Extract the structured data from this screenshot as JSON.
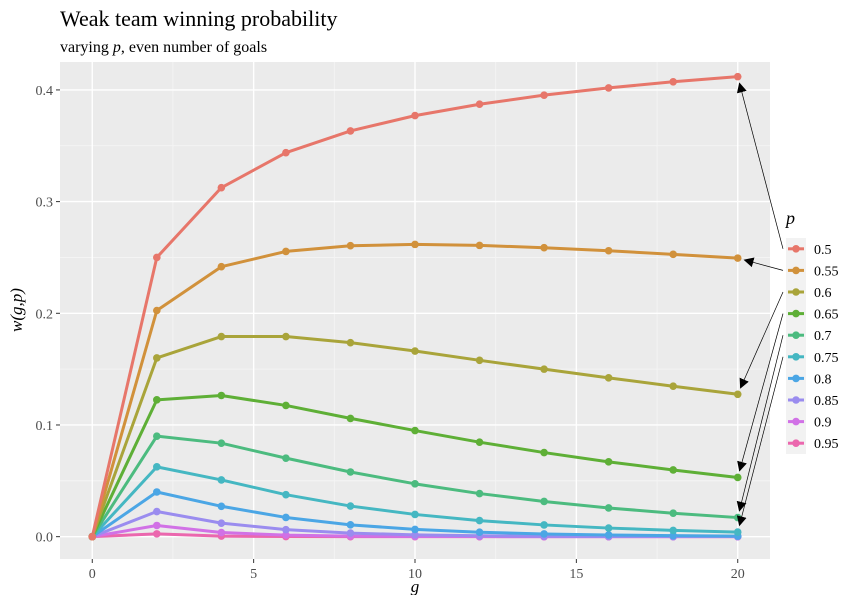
{
  "chart_data": {
    "type": "line",
    "title": "Weak team winning probability",
    "subtitle_prefix": "varying ",
    "subtitle_var": "p",
    "subtitle_suffix": ", even number of goals",
    "xlabel": "g",
    "ylabel": "w(g,p)",
    "xlim": [
      -1,
      21
    ],
    "ylim": [
      -0.02,
      0.425
    ],
    "xticks": [
      0,
      5,
      10,
      15,
      20
    ],
    "xtick_labels": [
      "0",
      "5",
      "10",
      "15",
      "20"
    ],
    "yticks": [
      0,
      0.1,
      0.2,
      0.3,
      0.4
    ],
    "ytick_labels": [
      "0.0",
      "0.1",
      "0.2",
      "0.3",
      "0.4"
    ],
    "grid": true,
    "legend_title": "p",
    "legend_position": "right",
    "x": [
      0,
      2,
      4,
      6,
      8,
      10,
      12,
      14,
      16,
      18,
      20
    ],
    "series": [
      {
        "name": "0.5",
        "color": "#E7766A",
        "values": [
          0,
          0.25,
          0.3125,
          0.3438,
          0.3633,
          0.377,
          0.3872,
          0.3953,
          0.4018,
          0.4073,
          0.4119
        ]
      },
      {
        "name": "0.55",
        "color": "#D1913B",
        "values": [
          0,
          0.2025,
          0.2417,
          0.2554,
          0.2605,
          0.2617,
          0.2608,
          0.2587,
          0.256,
          0.2528,
          0.2494
        ]
      },
      {
        "name": "0.6",
        "color": "#A9A43A",
        "values": [
          0,
          0.16,
          0.1792,
          0.1792,
          0.1737,
          0.1662,
          0.1579,
          0.15,
          0.1422,
          0.1347,
          0.1275
        ]
      },
      {
        "name": "0.65",
        "color": "#5EAF36",
        "values": [
          0,
          0.1225,
          0.1264,
          0.1175,
          0.1059,
          0.095,
          0.0846,
          0.0753,
          0.067,
          0.0597,
          0.053
        ]
      },
      {
        "name": "0.7",
        "color": "#4CBB7F",
        "values": [
          0,
          0.09,
          0.0837,
          0.0703,
          0.0579,
          0.0473,
          0.0386,
          0.0315,
          0.0257,
          0.021,
          0.0171
        ]
      },
      {
        "name": "0.75",
        "color": "#45B7C2",
        "values": [
          0,
          0.0625,
          0.0508,
          0.0376,
          0.0274,
          0.0199,
          0.0144,
          0.0105,
          0.0077,
          0.0056,
          0.0041
        ]
      },
      {
        "name": "0.8",
        "color": "#4BA6E5",
        "values": [
          0,
          0.04,
          0.0272,
          0.0172,
          0.0106,
          0.0065,
          0.004,
          0.0024,
          0.0015,
          0.0009,
          0.0005
        ]
      },
      {
        "name": "0.85",
        "color": "#9A8CEF",
        "values": [
          0,
          0.0225,
          0.0121,
          0.0063,
          0.0032,
          0.0016,
          0.0008,
          0.0004,
          0.0002,
          0.0001,
          0.0001
        ]
      },
      {
        "name": "0.9",
        "color": "#D171E6",
        "values": [
          0,
          0.01,
          0.0037,
          0.0014,
          0.0005,
          0.0002,
          0.0001,
          0.0,
          0.0,
          0.0,
          0.0
        ]
      },
      {
        "name": "0.95",
        "color": "#EB67AE",
        "values": [
          0,
          0.0025,
          0.0005,
          0.0001,
          0.0,
          0.0,
          0.0,
          0.0,
          0.0,
          0.0,
          0.0
        ]
      }
    ],
    "annotations": "arrows link legend keys 0.5, 0.55, 0.6, 0.65, 0.7, 0.75 to the last point of each series"
  }
}
